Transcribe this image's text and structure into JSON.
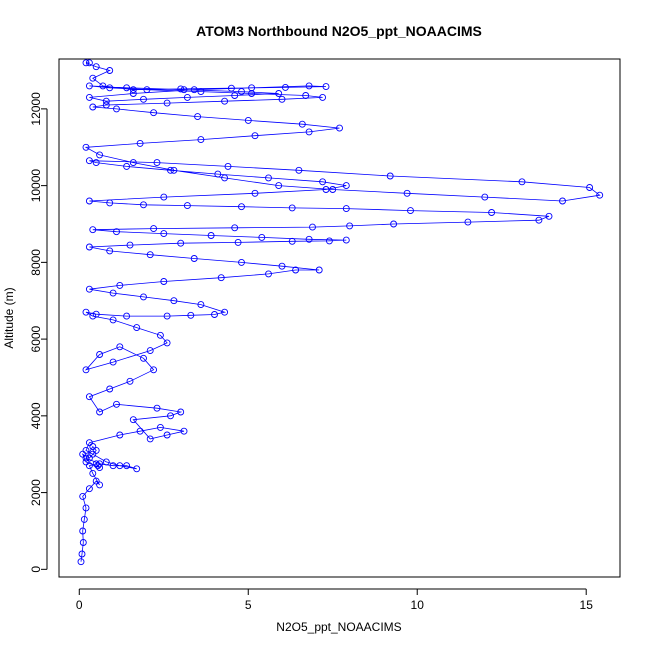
{
  "chart_data": {
    "type": "scatter",
    "title": "ATOM3 Northbound N2O5_ppt_NOAACIMS",
    "xlabel": "N2O5_ppt_NOAACIMS",
    "ylabel": "Altitude (m)",
    "xlim": [
      -0.6,
      16
    ],
    "ylim": [
      -200,
      13300
    ],
    "xticks": [
      0,
      5,
      10,
      15
    ],
    "yticks": [
      0,
      2000,
      4000,
      6000,
      8000,
      10000,
      12000
    ],
    "grid": false,
    "color": "#0000ff",
    "series": [
      {
        "marker": "open-circle",
        "connected": true,
        "x": [
          0.05,
          0.08,
          0.12,
          0.1,
          0.15,
          0.2,
          0.1,
          0.3,
          0.5,
          0.6,
          0.4,
          0.3,
          0.5,
          0.55,
          0.6,
          0.2,
          0.1,
          0.3,
          0.5,
          0.4,
          0.2,
          0.6,
          1.0,
          1.4,
          1.7,
          1.2,
          0.8,
          0.4,
          0.2,
          0.3,
          1.2,
          1.8,
          2.4,
          3.1,
          2.6,
          2.1,
          1.6,
          2.7,
          3.0,
          2.3,
          1.1,
          0.6,
          0.3,
          0.9,
          1.5,
          2.2,
          1.9,
          1.2,
          0.6,
          0.2,
          1.0,
          2.1,
          2.6,
          2.4,
          1.7,
          1.0,
          0.4,
          0.2,
          0.5,
          1.4,
          2.6,
          3.3,
          4.0,
          4.3,
          3.6,
          2.8,
          1.9,
          1.0,
          0.3,
          1.2,
          2.5,
          4.2,
          5.6,
          6.4,
          7.1,
          6.0,
          4.8,
          3.4,
          2.1,
          0.9,
          0.3,
          1.5,
          3.0,
          4.7,
          6.3,
          7.4,
          7.9,
          6.8,
          5.4,
          3.9,
          2.5,
          1.1,
          0.4,
          2.2,
          4.6,
          6.9,
          8.0,
          9.3,
          11.5,
          13.6,
          13.9,
          12.2,
          9.8,
          7.9,
          6.3,
          4.8,
          3.2,
          1.9,
          0.9,
          0.3,
          2.5,
          5.2,
          7.3,
          7.9,
          7.2,
          5.6,
          4.1,
          2.7,
          1.4,
          0.5,
          0.3,
          2.3,
          4.4,
          6.5,
          9.2,
          13.1,
          15.1,
          15.4,
          14.3,
          12.0,
          9.7,
          7.5,
          5.9,
          4.3,
          2.8,
          1.6,
          0.6,
          0.2,
          1.8,
          3.6,
          5.2,
          6.8,
          7.7,
          6.6,
          5.0,
          3.5,
          2.2,
          1.1,
          0.4,
          0.8,
          2.6,
          4.3,
          6.0,
          7.2,
          6.7,
          5.1,
          3.6,
          2.0,
          0.9,
          0.3,
          1.4,
          3.1,
          4.8,
          5.9,
          4.6,
          3.2,
          1.9,
          0.8,
          0.3,
          1.6,
          3.4,
          5.1,
          6.8,
          7.3,
          6.1,
          4.5,
          3.0,
          1.6,
          0.7,
          0.4,
          0.9,
          0.5,
          0.2,
          0.3
        ],
        "y": [
          200,
          400,
          700,
          1000,
          1300,
          1600,
          1900,
          2100,
          2300,
          2200,
          2500,
          2700,
          2750,
          2700,
          2650,
          2800,
          3000,
          2900,
          3100,
          3200,
          2900,
          2750,
          2700,
          2700,
          2620,
          2700,
          2800,
          3000,
          3100,
          3300,
          3500,
          3600,
          3700,
          3600,
          3500,
          3400,
          3900,
          4000,
          4100,
          4200,
          4300,
          4100,
          4500,
          4700,
          4900,
          5200,
          5500,
          5800,
          5600,
          5200,
          5400,
          5700,
          5900,
          6100,
          6300,
          6500,
          6600,
          6700,
          6650,
          6600,
          6600,
          6620,
          6640,
          6700,
          6900,
          7000,
          7100,
          7200,
          7300,
          7400,
          7500,
          7600,
          7700,
          7800,
          7800,
          7900,
          8000,
          8100,
          8200,
          8300,
          8400,
          8450,
          8500,
          8520,
          8550,
          8560,
          8580,
          8600,
          8650,
          8700,
          8750,
          8800,
          8850,
          8880,
          8900,
          8920,
          8950,
          9000,
          9050,
          9100,
          9200,
          9300,
          9350,
          9400,
          9420,
          9450,
          9480,
          9500,
          9550,
          9600,
          9700,
          9800,
          9900,
          10000,
          10100,
          10200,
          10300,
          10400,
          10500,
          10600,
          10650,
          10600,
          10500,
          10400,
          10250,
          10100,
          9950,
          9750,
          9600,
          9700,
          9800,
          9900,
          10000,
          10200,
          10400,
          10600,
          10800,
          11000,
          11100,
          11200,
          11300,
          11400,
          11500,
          11600,
          11700,
          11800,
          11900,
          12000,
          12050,
          12100,
          12150,
          12200,
          12250,
          12300,
          12350,
          12400,
          12450,
          12500,
          12550,
          12600,
          12550,
          12500,
          12450,
          12400,
          12350,
          12300,
          12250,
          12200,
          12300,
          12400,
          12500,
          12550,
          12600,
          12580,
          12560,
          12540,
          12520,
          12500,
          12600,
          12800,
          13000,
          13100,
          13200,
          13200
        ]
      }
    ]
  }
}
